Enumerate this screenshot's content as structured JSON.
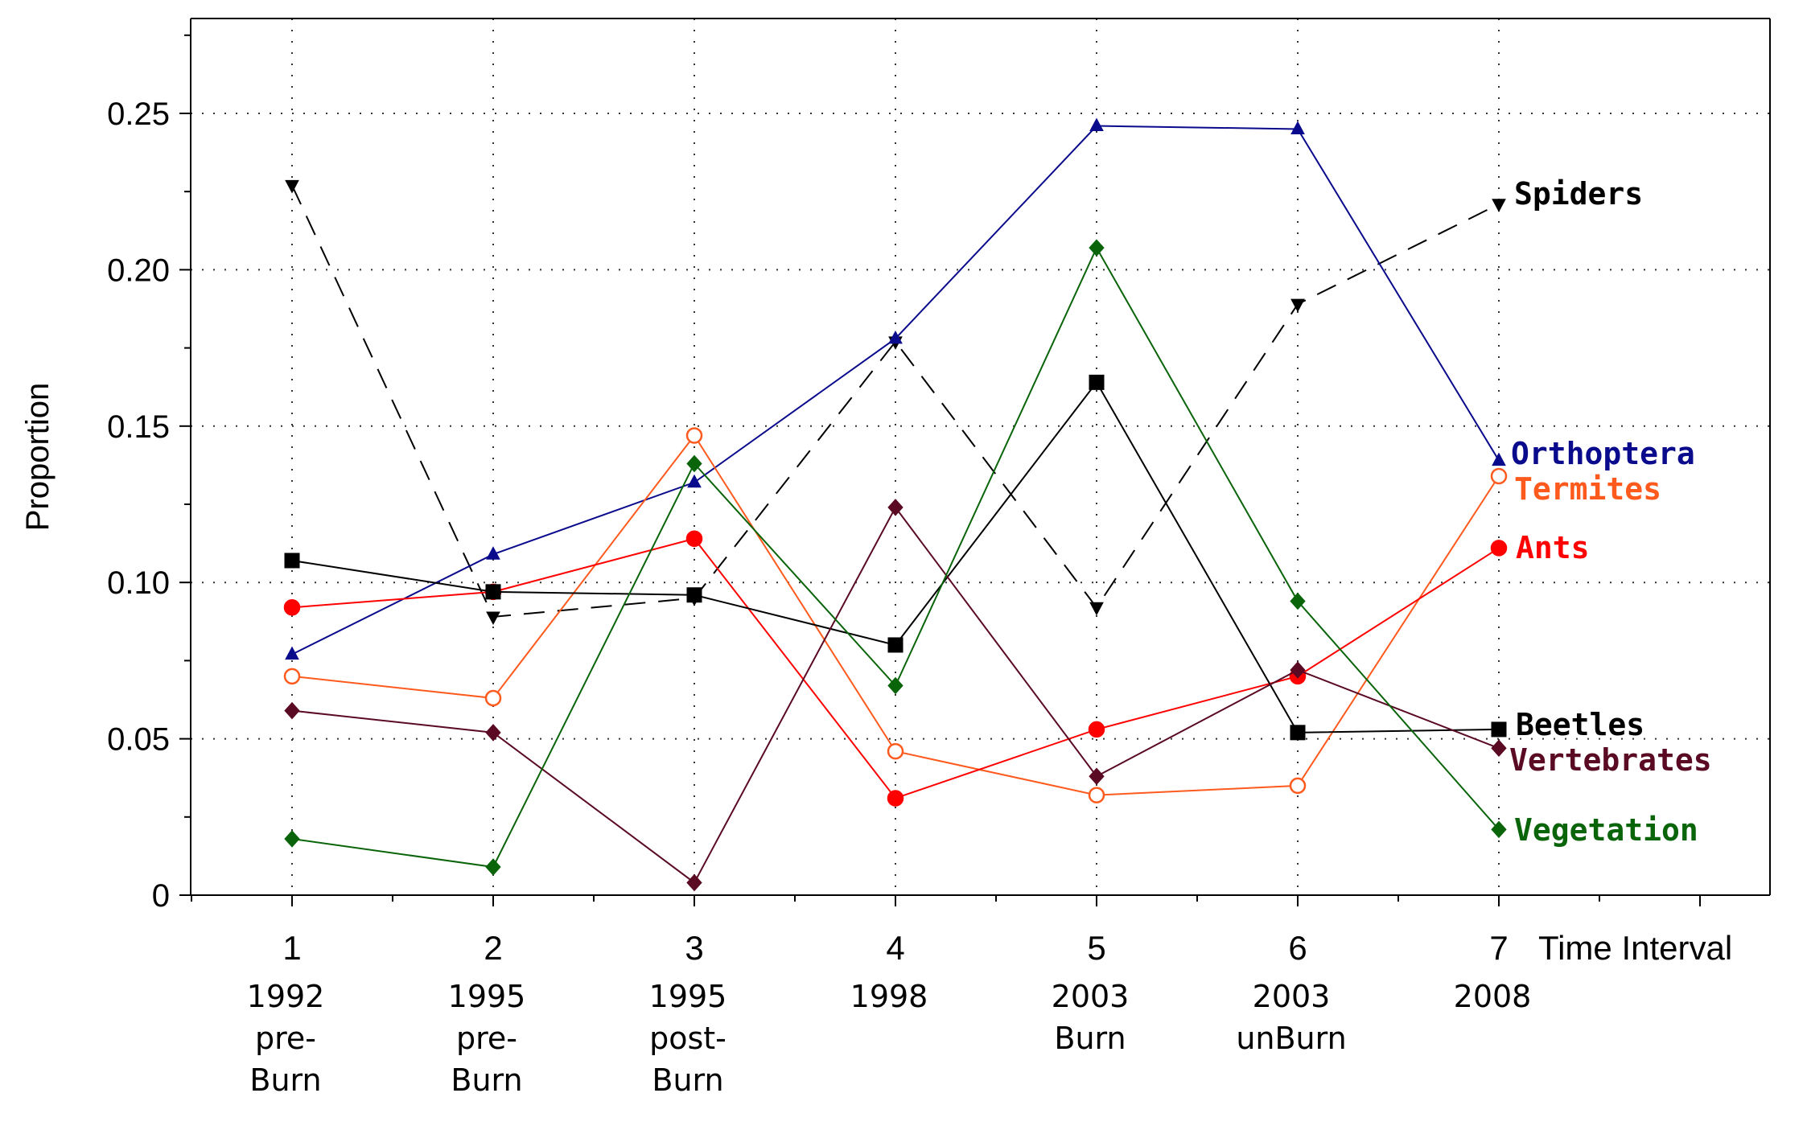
{
  "chart_data": {
    "type": "line",
    "ylabel": "Proportion",
    "xlabel": "Time Interval",
    "ylim": [
      0,
      0.28
    ],
    "y_ticks": [
      "0",
      "0.05",
      "0.10",
      "0.15",
      "0.20",
      "0.25"
    ],
    "y_tick_values": [
      0,
      0.05,
      0.1,
      0.15,
      0.2,
      0.25
    ],
    "x": [
      1,
      2,
      3,
      4,
      5,
      6,
      7
    ],
    "xlim": [
      0.5,
      8.3
    ],
    "x_ticks": [
      "1",
      "2",
      "3",
      "4",
      "5",
      "6",
      "7"
    ],
    "categories": [
      [
        "1992",
        "pre-",
        "Burn"
      ],
      [
        "1995",
        "pre-",
        "Burn"
      ],
      [
        "1995",
        "post-",
        "Burn"
      ],
      [
        "1998"
      ],
      [
        "2003",
        "Burn"
      ],
      [
        "2003",
        "unBurn"
      ],
      [
        "2008"
      ]
    ],
    "grid": true,
    "legend": "series labels at right end of lines",
    "series": [
      {
        "name": "Spiders",
        "color": "#000000",
        "marker": "triangle-down",
        "dash": true,
        "filled": true,
        "values": [
          0.227,
          0.089,
          0.095,
          0.177,
          0.092,
          0.189,
          0.221
        ]
      },
      {
        "name": "Orthoptera",
        "color": "#0a0a8c",
        "marker": "triangle-up",
        "dash": false,
        "filled": true,
        "values": [
          0.077,
          0.109,
          0.132,
          0.178,
          0.246,
          0.245,
          0.139
        ]
      },
      {
        "name": "Termites",
        "color": "#ff5a1e",
        "marker": "circle",
        "dash": false,
        "filled": false,
        "values": [
          0.07,
          0.063,
          0.147,
          0.046,
          0.032,
          0.035,
          0.134
        ]
      },
      {
        "name": "Ants",
        "color": "#ff0000",
        "marker": "circle",
        "dash": false,
        "filled": true,
        "values": [
          0.092,
          0.097,
          0.114,
          0.031,
          0.053,
          0.07,
          0.111
        ]
      },
      {
        "name": "Beetles",
        "color": "#000000",
        "marker": "square",
        "dash": false,
        "filled": true,
        "values": [
          0.107,
          0.097,
          0.096,
          0.08,
          0.164,
          0.052,
          0.053
        ]
      },
      {
        "name": "Vertebrates",
        "color": "#5a0a23",
        "marker": "diamond",
        "dash": false,
        "filled": true,
        "values": [
          0.059,
          0.052,
          0.004,
          0.124,
          0.038,
          0.072,
          0.047
        ]
      },
      {
        "name": "Vegetation",
        "color": "#0a640a",
        "marker": "diamond",
        "dash": false,
        "filled": true,
        "values": [
          0.018,
          0.009,
          0.138,
          0.067,
          0.207,
          0.094,
          0.021
        ]
      }
    ]
  }
}
